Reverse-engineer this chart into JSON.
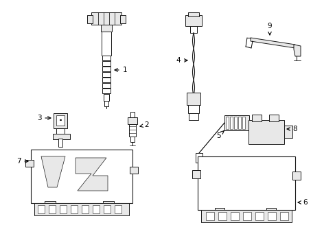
{
  "background_color": "#ffffff",
  "line_color": "#1a1a1a",
  "fig_width": 4.89,
  "fig_height": 3.6,
  "dpi": 100,
  "gray_fill": "#e8e8e8",
  "mid_gray": "#d0d0d0",
  "dark_gray": "#b0b0b0"
}
